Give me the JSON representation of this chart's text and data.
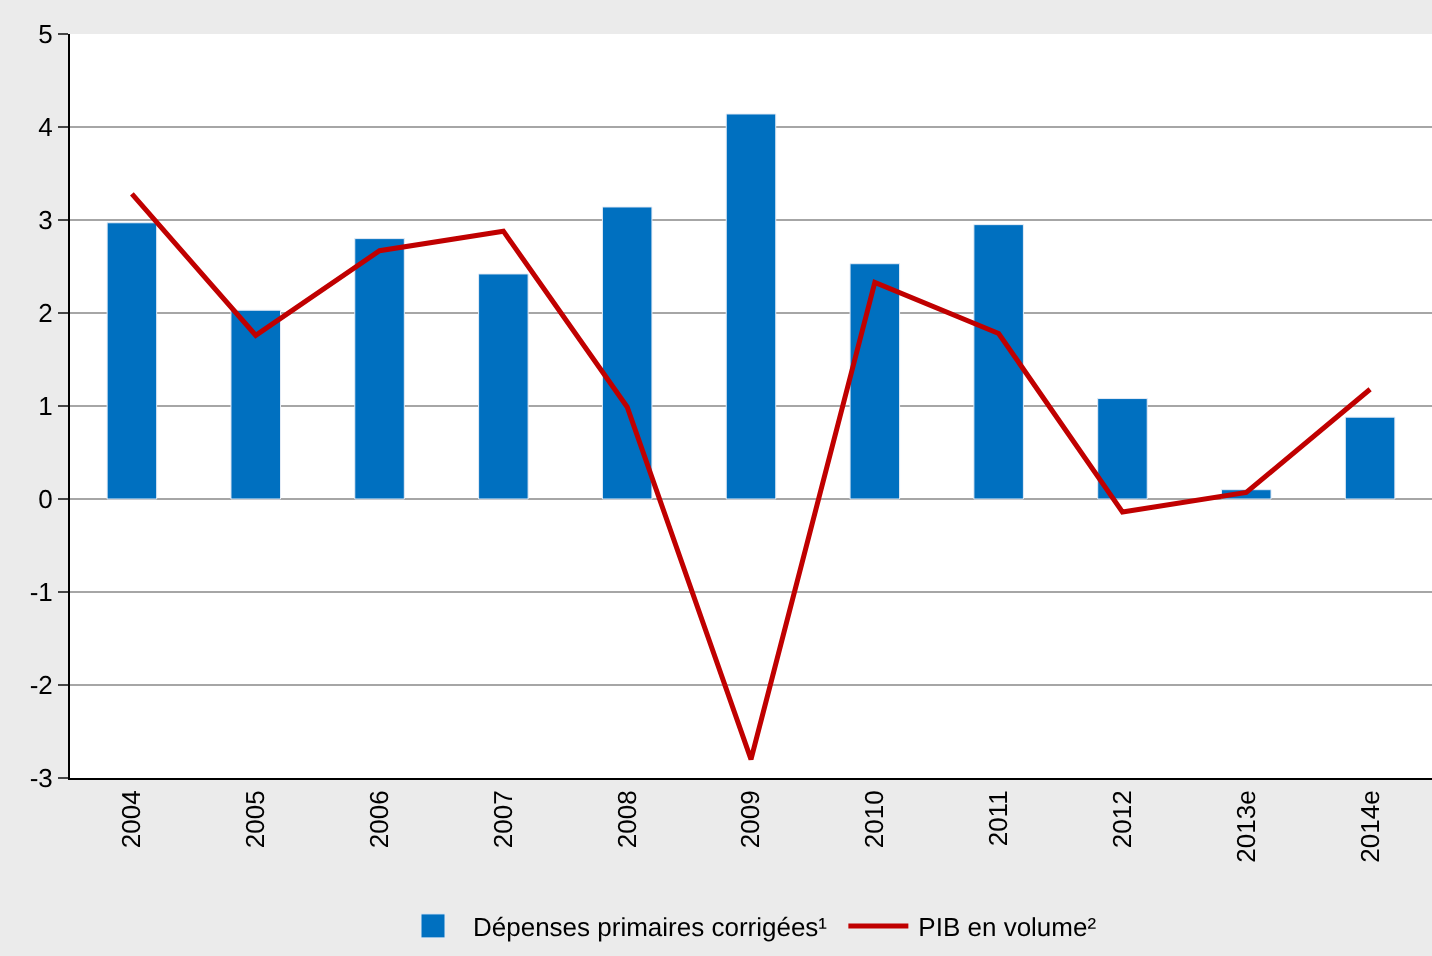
{
  "chart_data": {
    "type": "bar",
    "categories": [
      "2004",
      "2005",
      "2006",
      "2007",
      "2008",
      "2009",
      "2010",
      "2011",
      "2012",
      "2013e",
      "2014e"
    ],
    "series": [
      {
        "name": "Dépenses primaires corrigées¹",
        "color": "#0070c0",
        "values": [
          2.97,
          2.03,
          2.8,
          2.42,
          3.14,
          4.14,
          2.53,
          2.95,
          1.08,
          0.1,
          0.88
        ]
      },
      {
        "name": "PIB en volume²",
        "type": "line",
        "color": "#c00000",
        "values": [
          3.28,
          1.76,
          2.67,
          2.88,
          0.99,
          -2.8,
          2.33,
          1.78,
          -0.14,
          0.07,
          1.18
        ]
      }
    ],
    "ylim": [
      -3,
      5
    ],
    "yticks": [
      -3,
      -2,
      -1,
      0,
      1,
      2,
      3,
      4,
      5
    ],
    "grid": "y",
    "legend": "bottom",
    "marker": "none",
    "line_style": "solid"
  }
}
